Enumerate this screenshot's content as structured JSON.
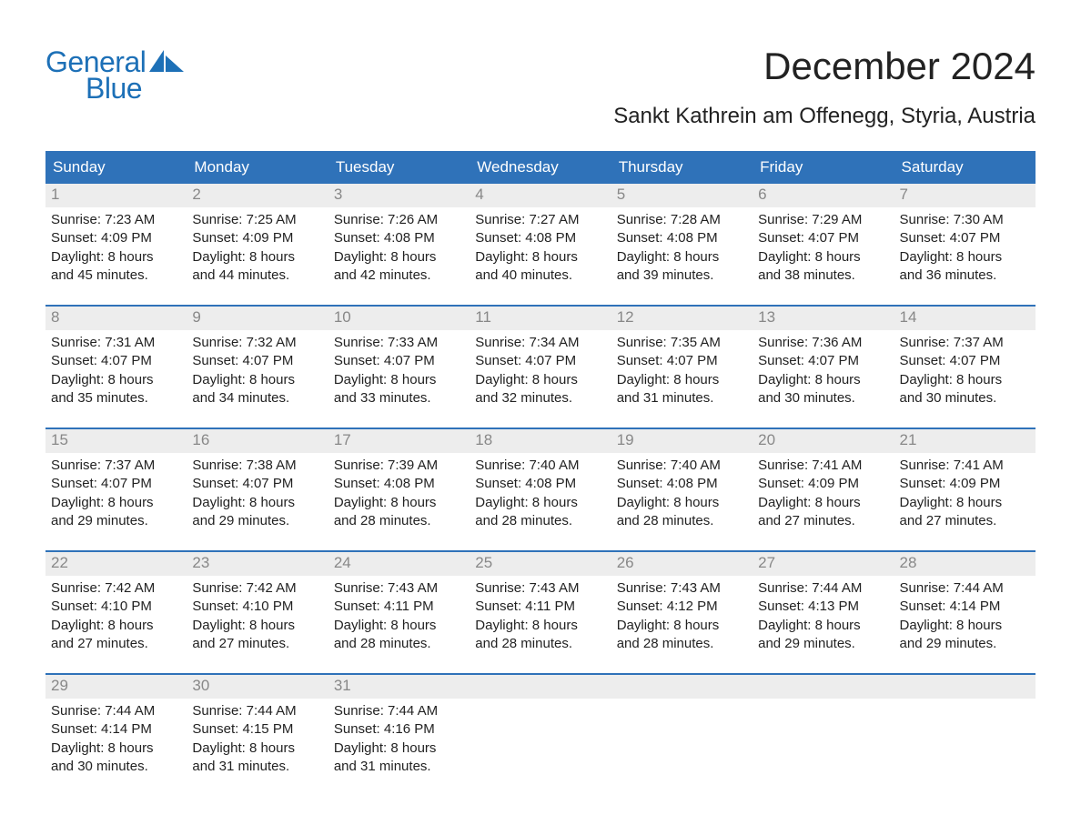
{
  "logo": {
    "line1": "General",
    "line2": "Blue"
  },
  "title": "December 2024",
  "location": "Sankt Kathrein am Offenegg, Styria, Austria",
  "columns": [
    "Sunday",
    "Monday",
    "Tuesday",
    "Wednesday",
    "Thursday",
    "Friday",
    "Saturday"
  ],
  "colors": {
    "header_bg": "#2f72b9",
    "header_text": "#ffffff",
    "daynum_bg": "#ededed",
    "daynum_text": "#888888",
    "rule": "#2f72b9",
    "logo_text": "#1d70b7",
    "body_text": "#222222",
    "page_bg": "#ffffff"
  },
  "fonts": {
    "title_size_pt": 32,
    "location_size_pt": 18,
    "header_size_pt": 13,
    "daynum_size_pt": 13,
    "detail_size_pt": 11,
    "logo_size_pt": 24
  },
  "weeks": [
    [
      {
        "n": "1",
        "sunrise": "Sunrise: 7:23 AM",
        "sunset": "Sunset: 4:09 PM",
        "d1": "Daylight: 8 hours",
        "d2": "and 45 minutes."
      },
      {
        "n": "2",
        "sunrise": "Sunrise: 7:25 AM",
        "sunset": "Sunset: 4:09 PM",
        "d1": "Daylight: 8 hours",
        "d2": "and 44 minutes."
      },
      {
        "n": "3",
        "sunrise": "Sunrise: 7:26 AM",
        "sunset": "Sunset: 4:08 PM",
        "d1": "Daylight: 8 hours",
        "d2": "and 42 minutes."
      },
      {
        "n": "4",
        "sunrise": "Sunrise: 7:27 AM",
        "sunset": "Sunset: 4:08 PM",
        "d1": "Daylight: 8 hours",
        "d2": "and 40 minutes."
      },
      {
        "n": "5",
        "sunrise": "Sunrise: 7:28 AM",
        "sunset": "Sunset: 4:08 PM",
        "d1": "Daylight: 8 hours",
        "d2": "and 39 minutes."
      },
      {
        "n": "6",
        "sunrise": "Sunrise: 7:29 AM",
        "sunset": "Sunset: 4:07 PM",
        "d1": "Daylight: 8 hours",
        "d2": "and 38 minutes."
      },
      {
        "n": "7",
        "sunrise": "Sunrise: 7:30 AM",
        "sunset": "Sunset: 4:07 PM",
        "d1": "Daylight: 8 hours",
        "d2": "and 36 minutes."
      }
    ],
    [
      {
        "n": "8",
        "sunrise": "Sunrise: 7:31 AM",
        "sunset": "Sunset: 4:07 PM",
        "d1": "Daylight: 8 hours",
        "d2": "and 35 minutes."
      },
      {
        "n": "9",
        "sunrise": "Sunrise: 7:32 AM",
        "sunset": "Sunset: 4:07 PM",
        "d1": "Daylight: 8 hours",
        "d2": "and 34 minutes."
      },
      {
        "n": "10",
        "sunrise": "Sunrise: 7:33 AM",
        "sunset": "Sunset: 4:07 PM",
        "d1": "Daylight: 8 hours",
        "d2": "and 33 minutes."
      },
      {
        "n": "11",
        "sunrise": "Sunrise: 7:34 AM",
        "sunset": "Sunset: 4:07 PM",
        "d1": "Daylight: 8 hours",
        "d2": "and 32 minutes."
      },
      {
        "n": "12",
        "sunrise": "Sunrise: 7:35 AM",
        "sunset": "Sunset: 4:07 PM",
        "d1": "Daylight: 8 hours",
        "d2": "and 31 minutes."
      },
      {
        "n": "13",
        "sunrise": "Sunrise: 7:36 AM",
        "sunset": "Sunset: 4:07 PM",
        "d1": "Daylight: 8 hours",
        "d2": "and 30 minutes."
      },
      {
        "n": "14",
        "sunrise": "Sunrise: 7:37 AM",
        "sunset": "Sunset: 4:07 PM",
        "d1": "Daylight: 8 hours",
        "d2": "and 30 minutes."
      }
    ],
    [
      {
        "n": "15",
        "sunrise": "Sunrise: 7:37 AM",
        "sunset": "Sunset: 4:07 PM",
        "d1": "Daylight: 8 hours",
        "d2": "and 29 minutes."
      },
      {
        "n": "16",
        "sunrise": "Sunrise: 7:38 AM",
        "sunset": "Sunset: 4:07 PM",
        "d1": "Daylight: 8 hours",
        "d2": "and 29 minutes."
      },
      {
        "n": "17",
        "sunrise": "Sunrise: 7:39 AM",
        "sunset": "Sunset: 4:08 PM",
        "d1": "Daylight: 8 hours",
        "d2": "and 28 minutes."
      },
      {
        "n": "18",
        "sunrise": "Sunrise: 7:40 AM",
        "sunset": "Sunset: 4:08 PM",
        "d1": "Daylight: 8 hours",
        "d2": "and 28 minutes."
      },
      {
        "n": "19",
        "sunrise": "Sunrise: 7:40 AM",
        "sunset": "Sunset: 4:08 PM",
        "d1": "Daylight: 8 hours",
        "d2": "and 28 minutes."
      },
      {
        "n": "20",
        "sunrise": "Sunrise: 7:41 AM",
        "sunset": "Sunset: 4:09 PM",
        "d1": "Daylight: 8 hours",
        "d2": "and 27 minutes."
      },
      {
        "n": "21",
        "sunrise": "Sunrise: 7:41 AM",
        "sunset": "Sunset: 4:09 PM",
        "d1": "Daylight: 8 hours",
        "d2": "and 27 minutes."
      }
    ],
    [
      {
        "n": "22",
        "sunrise": "Sunrise: 7:42 AM",
        "sunset": "Sunset: 4:10 PM",
        "d1": "Daylight: 8 hours",
        "d2": "and 27 minutes."
      },
      {
        "n": "23",
        "sunrise": "Sunrise: 7:42 AM",
        "sunset": "Sunset: 4:10 PM",
        "d1": "Daylight: 8 hours",
        "d2": "and 27 minutes."
      },
      {
        "n": "24",
        "sunrise": "Sunrise: 7:43 AM",
        "sunset": "Sunset: 4:11 PM",
        "d1": "Daylight: 8 hours",
        "d2": "and 28 minutes."
      },
      {
        "n": "25",
        "sunrise": "Sunrise: 7:43 AM",
        "sunset": "Sunset: 4:11 PM",
        "d1": "Daylight: 8 hours",
        "d2": "and 28 minutes."
      },
      {
        "n": "26",
        "sunrise": "Sunrise: 7:43 AM",
        "sunset": "Sunset: 4:12 PM",
        "d1": "Daylight: 8 hours",
        "d2": "and 28 minutes."
      },
      {
        "n": "27",
        "sunrise": "Sunrise: 7:44 AM",
        "sunset": "Sunset: 4:13 PM",
        "d1": "Daylight: 8 hours",
        "d2": "and 29 minutes."
      },
      {
        "n": "28",
        "sunrise": "Sunrise: 7:44 AM",
        "sunset": "Sunset: 4:14 PM",
        "d1": "Daylight: 8 hours",
        "d2": "and 29 minutes."
      }
    ],
    [
      {
        "n": "29",
        "sunrise": "Sunrise: 7:44 AM",
        "sunset": "Sunset: 4:14 PM",
        "d1": "Daylight: 8 hours",
        "d2": "and 30 minutes."
      },
      {
        "n": "30",
        "sunrise": "Sunrise: 7:44 AM",
        "sunset": "Sunset: 4:15 PM",
        "d1": "Daylight: 8 hours",
        "d2": "and 31 minutes."
      },
      {
        "n": "31",
        "sunrise": "Sunrise: 7:44 AM",
        "sunset": "Sunset: 4:16 PM",
        "d1": "Daylight: 8 hours",
        "d2": "and 31 minutes."
      },
      {
        "n": "",
        "sunrise": "",
        "sunset": "",
        "d1": "",
        "d2": ""
      },
      {
        "n": "",
        "sunrise": "",
        "sunset": "",
        "d1": "",
        "d2": ""
      },
      {
        "n": "",
        "sunrise": "",
        "sunset": "",
        "d1": "",
        "d2": ""
      },
      {
        "n": "",
        "sunrise": "",
        "sunset": "",
        "d1": "",
        "d2": ""
      }
    ]
  ]
}
